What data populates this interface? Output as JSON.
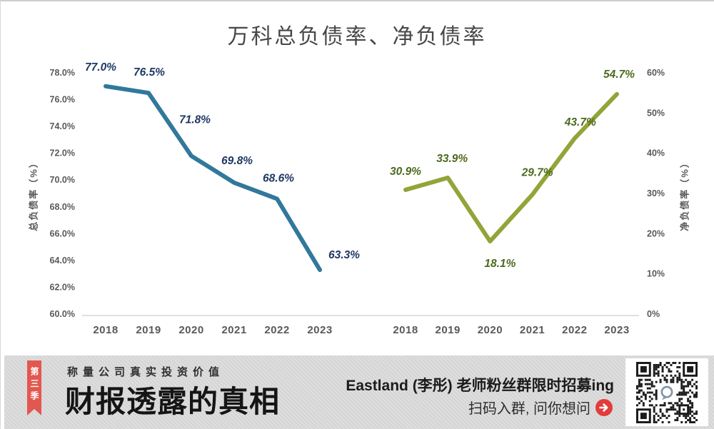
{
  "title": "万科总负债率、净负债率",
  "chart_data": {
    "type": "line",
    "title": "万科总负债率、净负债率",
    "categories": [
      "2018",
      "2019",
      "2020",
      "2021",
      "2022",
      "2023"
    ],
    "categories_note": "year labels repeat under each of the two series groups",
    "series": [
      {
        "name": "总负债率",
        "axis": "left",
        "values": [
          77.0,
          76.5,
          71.8,
          69.8,
          68.6,
          63.3
        ],
        "point_labels": [
          "77.0%",
          "76.5%",
          "71.8%",
          "69.8%",
          "68.6%",
          "63.3%"
        ],
        "color": "#31789B",
        "label_color": "#1F3864"
      },
      {
        "name": "净负债率",
        "axis": "right",
        "values": [
          30.9,
          33.9,
          18.1,
          29.7,
          43.7,
          54.7
        ],
        "point_labels": [
          "30.9%",
          "33.9%",
          "18.1%",
          "29.7%",
          "43.7%",
          "54.7%"
        ],
        "color": "#93A438",
        "label_color": "#4D6A1E"
      }
    ],
    "left_axis": {
      "title": "总负债率（%）",
      "min": 60,
      "max": 78,
      "tick_step": 2,
      "ticks": [
        "78.0%",
        "76.0%",
        "74.0%",
        "72.0%",
        "70.0%",
        "68.0%",
        "66.0%",
        "64.0%",
        "62.0%",
        "60.0%"
      ]
    },
    "right_axis": {
      "title": "净负债率（%）",
      "min": 0,
      "max": 60,
      "tick_step": 10,
      "ticks": [
        "60%",
        "50%",
        "40%",
        "30%",
        "20%",
        "10%",
        "0%"
      ]
    },
    "grid": false,
    "legend": "none",
    "axis_color": "#595959",
    "axis_line_color": "#d6d6d6"
  },
  "banner": {
    "ribbon_label": "第三季",
    "tagline": "称量公司真实投资价值",
    "brand_title": "财报透露的真相",
    "promo_line": "Eastland (李彤) 老师粉丝群限时招募ing",
    "cta_line": "扫码入群, 问你想问",
    "colors": {
      "background": "#d9d9d9",
      "ribbon": "#E2574F",
      "arrow": "#E23C3C"
    }
  }
}
